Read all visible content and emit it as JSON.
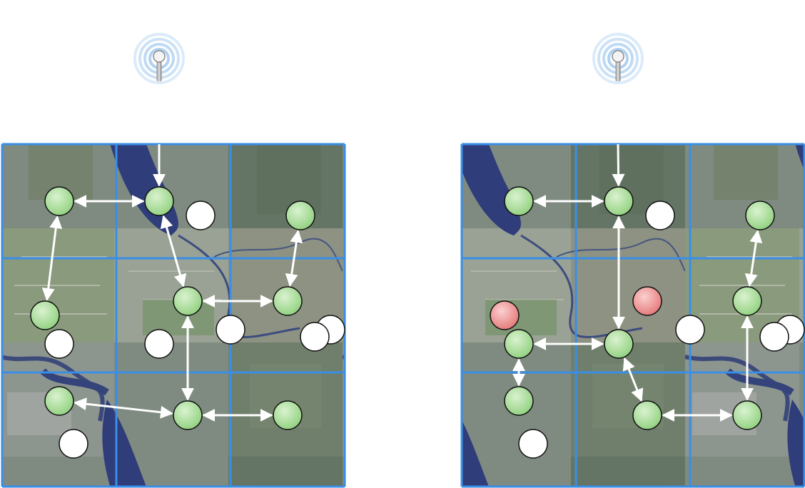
{
  "colors": {
    "grid": "#3a8ee6",
    "link": "#ffffff",
    "node_active": "#9fd88f",
    "node_failed": "#ee8a8a",
    "node_idle": "#ffffff",
    "water": "#2d3a78"
  },
  "panels": [
    {
      "id": "left",
      "icons": [
        "antenna-icon"
      ],
      "grid": {
        "rows": 3,
        "cols": 3
      },
      "nodes": [
        {
          "id": "a1",
          "state": "active"
        },
        {
          "id": "a2",
          "state": "active"
        },
        {
          "id": "i1",
          "state": "idle"
        },
        {
          "id": "a3",
          "state": "active"
        },
        {
          "id": "a4",
          "state": "active"
        },
        {
          "id": "a5",
          "state": "active"
        },
        {
          "id": "a6",
          "state": "active"
        },
        {
          "id": "i2",
          "state": "idle"
        },
        {
          "id": "i3",
          "state": "idle"
        },
        {
          "id": "i4",
          "state": "idle"
        },
        {
          "id": "i5",
          "state": "idle"
        },
        {
          "id": "i6",
          "state": "idle"
        },
        {
          "id": "a7",
          "state": "active"
        },
        {
          "id": "a8",
          "state": "active"
        },
        {
          "id": "a9",
          "state": "active"
        },
        {
          "id": "i7",
          "state": "idle"
        }
      ],
      "links": [
        {
          "from": "antenna",
          "to": "a2"
        },
        {
          "from": "a1",
          "to": "a2"
        },
        {
          "from": "a1",
          "to": "a6"
        },
        {
          "from": "a2",
          "to": "a4"
        },
        {
          "from": "a4",
          "to": "a5"
        },
        {
          "from": "a3",
          "to": "a5"
        },
        {
          "from": "a4",
          "to": "a8"
        },
        {
          "from": "a7",
          "to": "a8"
        },
        {
          "from": "a8",
          "to": "a9"
        }
      ]
    },
    {
      "id": "right",
      "icons": [
        "antenna-icon"
      ],
      "grid": {
        "rows": 3,
        "cols": 3
      },
      "nodes": [
        {
          "id": "a1",
          "state": "active"
        },
        {
          "id": "a2",
          "state": "active"
        },
        {
          "id": "i1",
          "state": "idle"
        },
        {
          "id": "a3",
          "state": "active"
        },
        {
          "id": "f1",
          "state": "failed"
        },
        {
          "id": "a4",
          "state": "active"
        },
        {
          "id": "f2",
          "state": "failed"
        },
        {
          "id": "i2",
          "state": "idle"
        },
        {
          "id": "i3",
          "state": "idle"
        },
        {
          "id": "i4",
          "state": "idle"
        },
        {
          "id": "a5",
          "state": "active"
        },
        {
          "id": "a6",
          "state": "active"
        },
        {
          "id": "a7",
          "state": "active"
        },
        {
          "id": "a8",
          "state": "active"
        },
        {
          "id": "a9",
          "state": "active"
        },
        {
          "id": "i5",
          "state": "idle"
        }
      ],
      "links": [
        {
          "from": "antenna",
          "to": "a2"
        },
        {
          "from": "a1",
          "to": "a2"
        },
        {
          "from": "a2",
          "to": "a6"
        },
        {
          "from": "a3",
          "to": "a4"
        },
        {
          "from": "a4",
          "to": "a9"
        },
        {
          "from": "a5",
          "to": "a6"
        },
        {
          "from": "a5",
          "to": "a7"
        },
        {
          "from": "a6",
          "to": "a8"
        },
        {
          "from": "a8",
          "to": "a9"
        }
      ]
    }
  ]
}
